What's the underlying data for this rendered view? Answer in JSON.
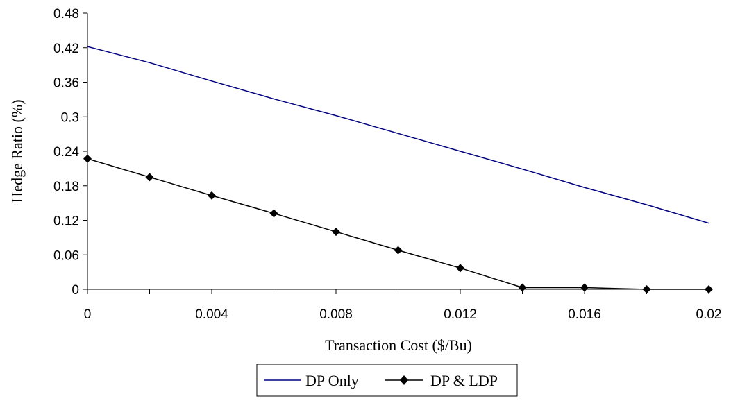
{
  "chart_data": {
    "type": "line",
    "title": "",
    "xlabel": "Transaction Cost ($/Bu)",
    "ylabel": "Hedge Ratio (%)",
    "xlim": [
      0,
      0.02
    ],
    "ylim": [
      0,
      0.48
    ],
    "x_ticks": [
      0,
      0.004,
      0.008,
      0.012,
      0.016,
      0.02
    ],
    "x_tick_labels": [
      "0",
      "0.004",
      "0.008",
      "0.012",
      "0.016",
      "0.02"
    ],
    "y_ticks": [
      0,
      0.06,
      0.12,
      0.18,
      0.24,
      0.3,
      0.36,
      0.42,
      0.48
    ],
    "y_tick_labels": [
      "0",
      "0.06",
      "0.12",
      "0.18",
      "0.24",
      "0.3",
      "0.36",
      "0.42",
      "0.48"
    ],
    "grid": false,
    "legend_position": "bottom",
    "x": [
      0,
      0.002,
      0.004,
      0.006,
      0.008,
      0.01,
      0.012,
      0.014,
      0.016,
      0.018,
      0.02
    ],
    "series": [
      {
        "name": "DP Only",
        "color": "#000080",
        "marker": "none",
        "values": [
          0.422,
          0.394,
          0.362,
          0.331,
          0.302,
          0.271,
          0.24,
          0.209,
          0.177,
          0.147,
          0.115
        ]
      },
      {
        "name": "DP & LDP",
        "color": "#000000",
        "marker": "diamond",
        "values": [
          0.227,
          0.195,
          0.163,
          0.132,
          0.1,
          0.068,
          0.037,
          0.003,
          0.003,
          0.0,
          0.0
        ]
      }
    ]
  }
}
